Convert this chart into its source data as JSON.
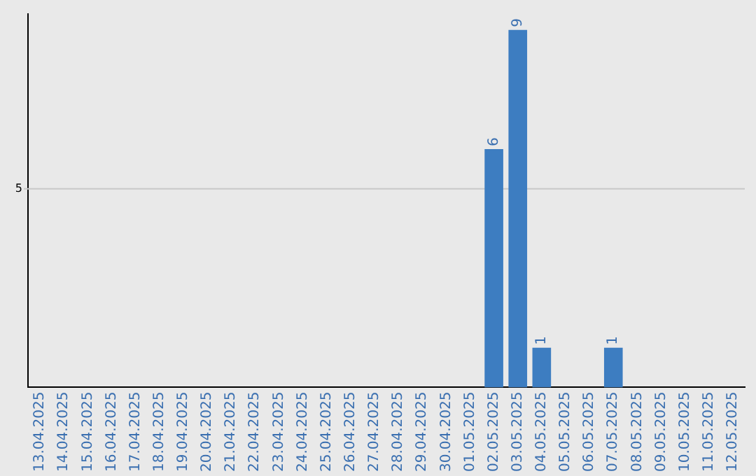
{
  "chart_data": {
    "type": "bar",
    "ylim": [
      0,
      9.4
    ],
    "tick_labels": "x",
    "categories": [
      "13.04.2025",
      "14.04.2025",
      "15.04.2025",
      "16.04.2025",
      "17.04.2025",
      "18.04.2025",
      "19.04.2025",
      "20.04.2025",
      "21.04.2025",
      "22.04.2025",
      "23.04.2025",
      "24.04.2025",
      "25.04.2025",
      "26.04.2025",
      "27.04.2025",
      "28.04.2025",
      "29.04.2025",
      "30.04.2025",
      "01.05.2025",
      "02.05.2025",
      "03.05.2025",
      "04.05.2025",
      "05.05.2025",
      "06.05.2025",
      "07.05.2025",
      "08.05.2025",
      "09.05.2025",
      "10.05.2025",
      "11.05.2025",
      "12.05.2025"
    ],
    "values": [
      null,
      null,
      null,
      null,
      null,
      null,
      null,
      null,
      null,
      null,
      null,
      null,
      null,
      null,
      null,
      null,
      null,
      null,
      null,
      6,
      9,
      1,
      null,
      null,
      1,
      null,
      null,
      null,
      null,
      null
    ],
    "value_labels": [
      null,
      null,
      null,
      null,
      null,
      null,
      null,
      null,
      null,
      null,
      null,
      null,
      null,
      null,
      null,
      null,
      null,
      null,
      null,
      "6",
      "9",
      "1",
      null,
      null,
      "1",
      null,
      null,
      null,
      null,
      null
    ],
    "color": "#3d7dc1",
    "ref_lines": [
      {
        "axis": "y",
        "value": 5,
        "label": "5",
        "color": "#c8c8c8"
      }
    ],
    "legend": false
  }
}
